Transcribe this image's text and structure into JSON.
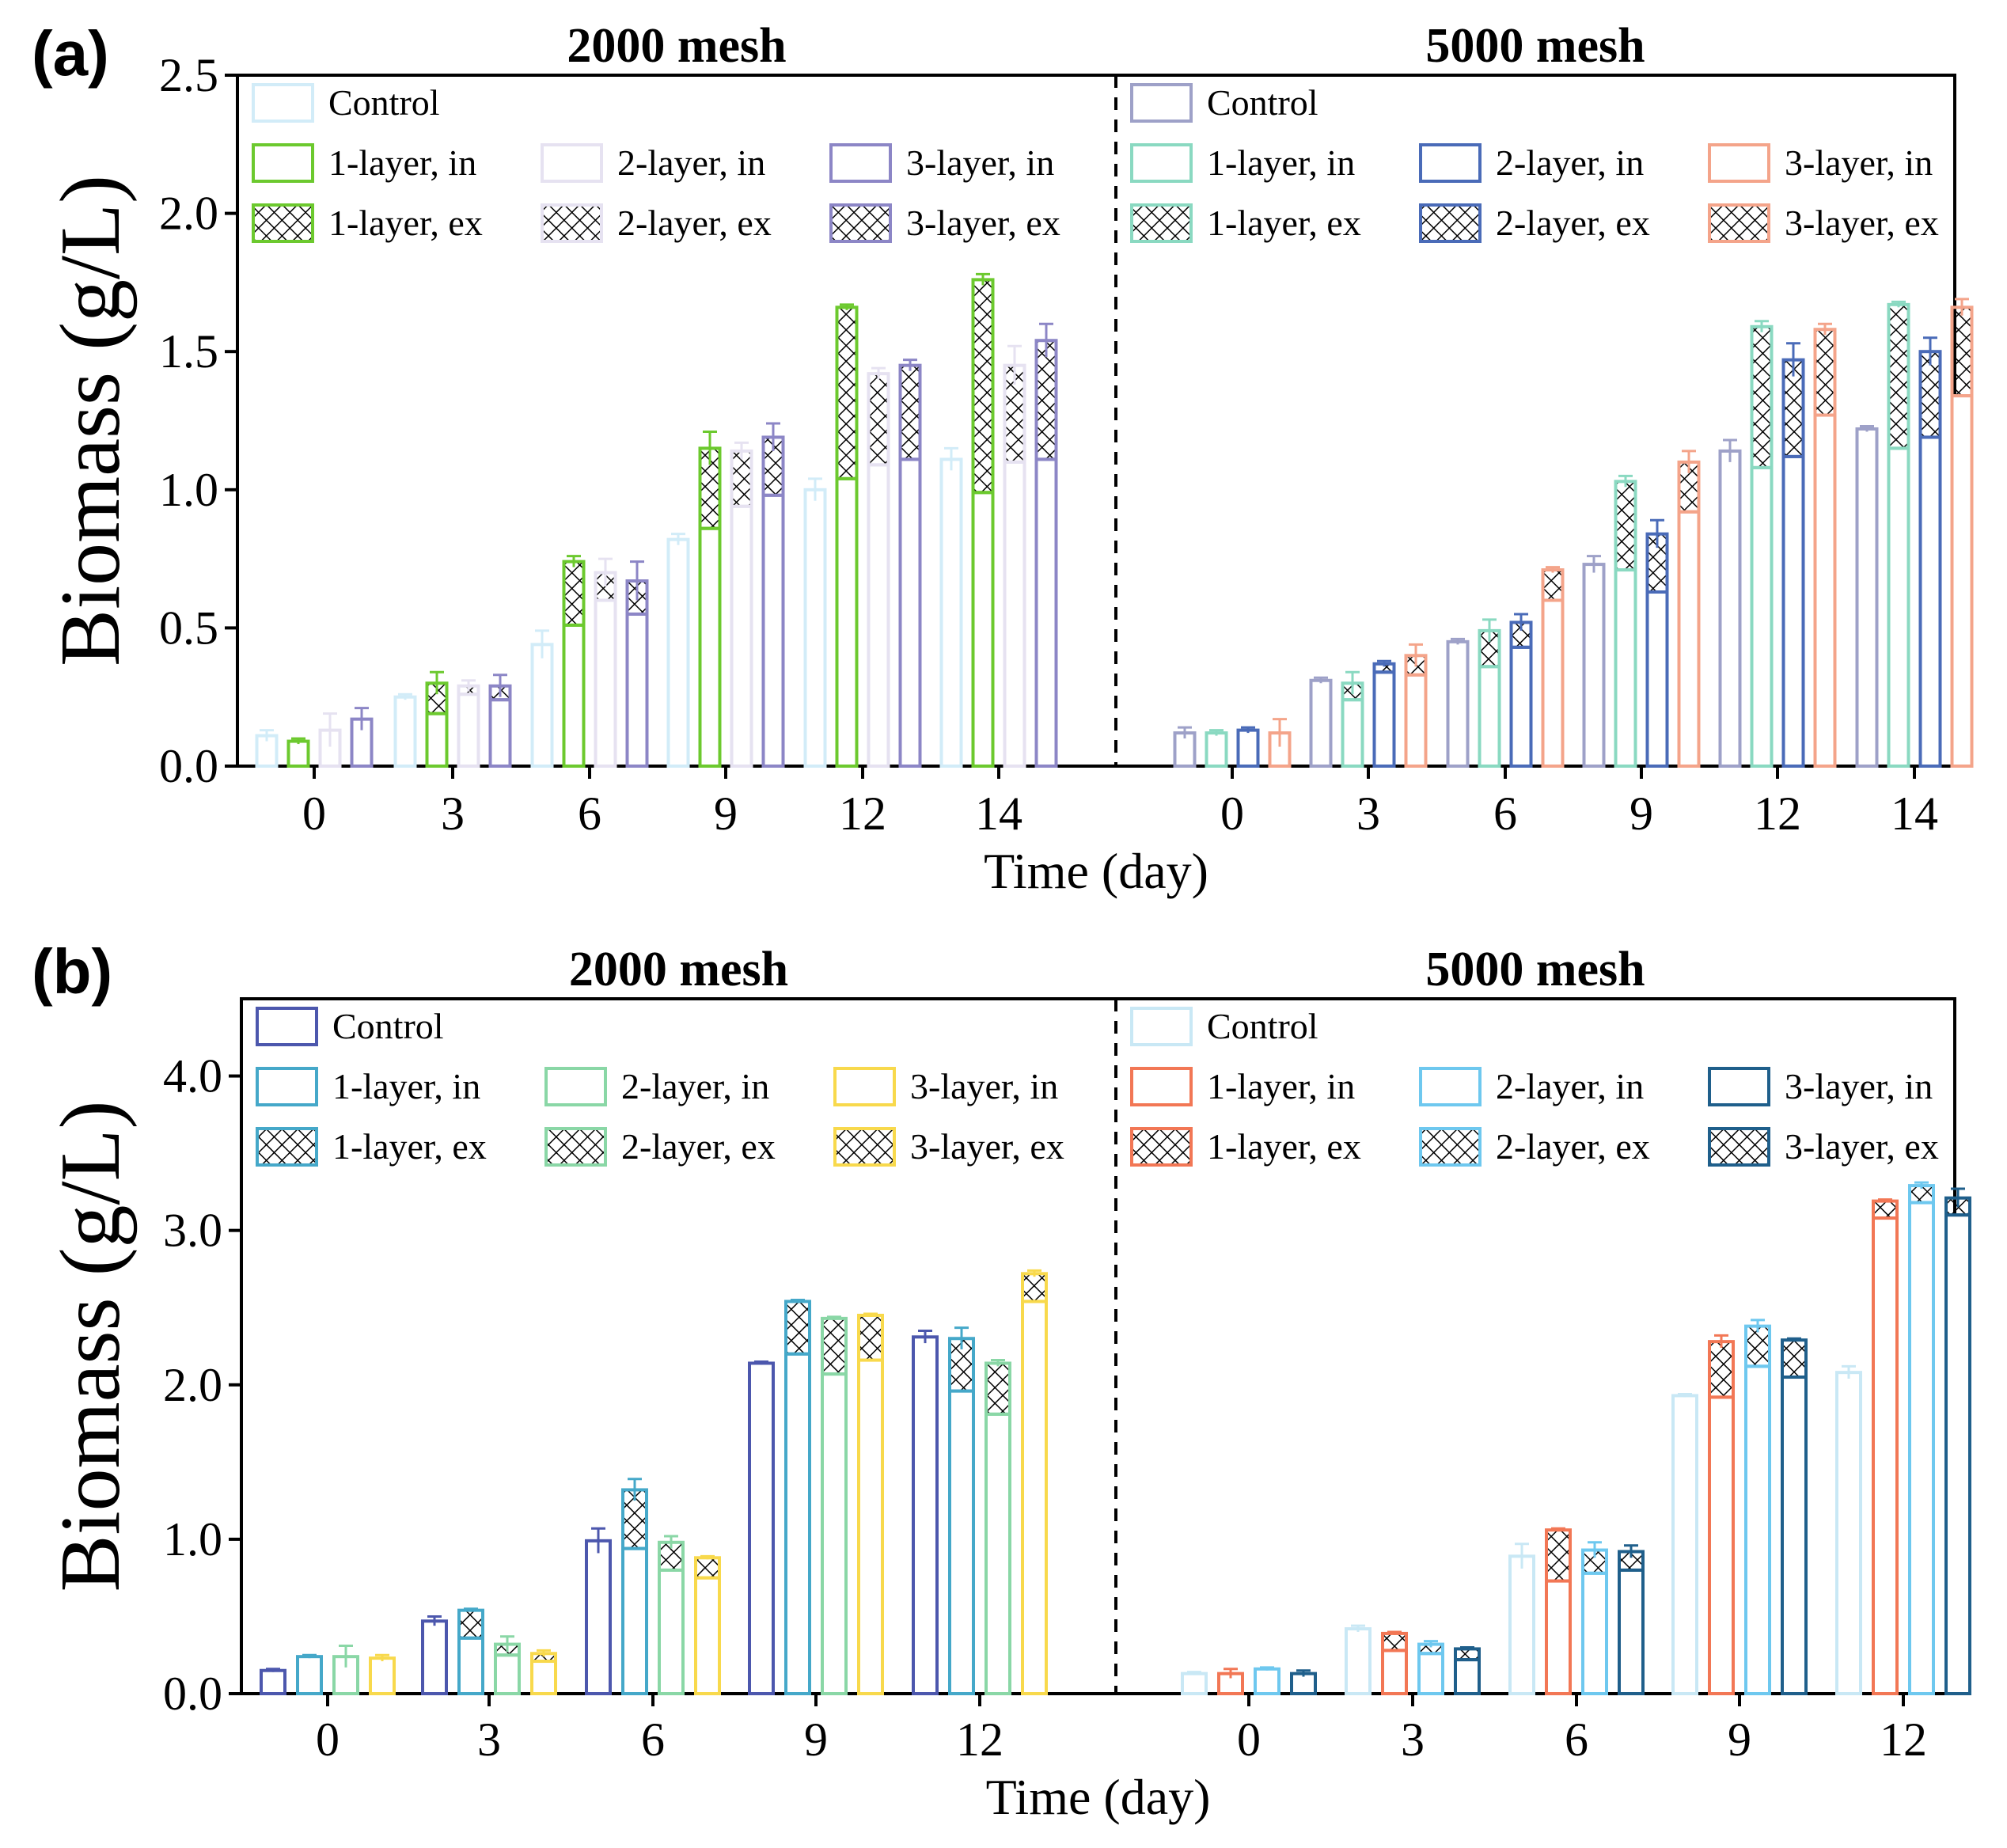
{
  "figure": {
    "xlabel": "Time (day)",
    "ylabel": "Biomass (g/L)"
  },
  "chart_data": [
    {
      "type": "bar",
      "panel_label": "(a)",
      "xlabel": "Time (day)",
      "ylabel": "Biomass (g/L)",
      "ylim": [
        0,
        2.5
      ],
      "yticks": [
        "0.0",
        "0.5",
        "1.0",
        "1.5",
        "2.0",
        "2.5"
      ],
      "groups": [
        {
          "title": "2000 mesh",
          "categories": [
            "0",
            "3",
            "6",
            "9",
            "12",
            "14"
          ],
          "legend_position": "top-left",
          "series": [
            {
              "name": "Control",
              "color": "#d2ecf8",
              "in": [
                0.11,
                0.25,
                0.44,
                0.82,
                1.0,
                1.11
              ],
              "err": [
                0.02,
                0.01,
                0.05,
                0.02,
                0.04,
                0.04
              ]
            },
            {
              "name": "1-layer",
              "color": "#6cc92e",
              "in": [
                0.09,
                0.19,
                0.51,
                0.86,
                1.04,
                0.99
              ],
              "ex": [
                null,
                0.3,
                0.74,
                1.15,
                1.66,
                1.76
              ],
              "err": [
                0.01,
                0.04,
                0.02,
                0.06,
                0.01,
                0.02
              ]
            },
            {
              "name": "2-layer",
              "color": "#e6e2f1",
              "in": [
                0.13,
                0.26,
                0.6,
                0.94,
                1.09,
                1.1
              ],
              "ex": [
                null,
                0.29,
                0.7,
                1.14,
                1.42,
                1.45
              ],
              "err": [
                0.06,
                0.02,
                0.05,
                0.03,
                0.02,
                0.07
              ]
            },
            {
              "name": "3-layer",
              "color": "#8c86c6",
              "in": [
                0.17,
                0.24,
                0.55,
                0.98,
                1.11,
                1.11
              ],
              "ex": [
                null,
                0.29,
                0.67,
                1.19,
                1.45,
                1.54
              ],
              "err": [
                0.04,
                0.04,
                0.07,
                0.05,
                0.02,
                0.06
              ]
            }
          ]
        },
        {
          "title": "5000 mesh",
          "categories": [
            "0",
            "3",
            "6",
            "9",
            "12",
            "14"
          ],
          "legend_position": "top-left",
          "series": [
            {
              "name": "Control",
              "color": "#9ea1c8",
              "in": [
                0.12,
                0.31,
                0.45,
                0.73,
                1.14,
                1.22
              ],
              "err": [
                0.02,
                0.01,
                0.01,
                0.03,
                0.04,
                0.01
              ]
            },
            {
              "name": "1-layer",
              "color": "#8ad9c1",
              "in": [
                0.12,
                0.24,
                0.36,
                0.71,
                1.08,
                1.15
              ],
              "ex": [
                null,
                0.3,
                0.49,
                1.03,
                1.59,
                1.67
              ],
              "err": [
                0.01,
                0.04,
                0.04,
                0.02,
                0.02,
                0.01
              ]
            },
            {
              "name": "2-layer",
              "color": "#4a6bb8",
              "in": [
                0.13,
                0.34,
                0.43,
                0.63,
                1.12,
                1.19
              ],
              "ex": [
                null,
                0.37,
                0.52,
                0.84,
                1.47,
                1.5
              ],
              "err": [
                0.01,
                0.01,
                0.03,
                0.05,
                0.06,
                0.05
              ]
            },
            {
              "name": "3-layer",
              "color": "#f4a48a",
              "in": [
                0.12,
                0.33,
                0.6,
                0.92,
                1.27,
                1.34
              ],
              "ex": [
                null,
                0.4,
                0.71,
                1.1,
                1.58,
                1.66
              ],
              "err": [
                0.05,
                0.04,
                0.01,
                0.04,
                0.02,
                0.03
              ]
            }
          ]
        }
      ],
      "legend": {
        "2000 mesh": [
          "Control",
          "1-layer, in",
          "2-layer, in",
          "3-layer, in",
          "1-layer, ex",
          "2-layer, ex",
          "3-layer, ex"
        ],
        "5000 mesh": [
          "Control",
          "1-layer, in",
          "2-layer, in",
          "3-layer, in",
          "1-layer, ex",
          "2-layer, ex",
          "3-layer, ex"
        ]
      }
    },
    {
      "type": "bar",
      "panel_label": "(b)",
      "xlabel": "Time (day)",
      "ylabel": "Biomass (g/L)",
      "ylim": [
        0,
        4.5
      ],
      "yticks": [
        "0.0",
        "1.0",
        "2.0",
        "3.0",
        "4.0"
      ],
      "groups": [
        {
          "title": "2000 mesh",
          "categories": [
            "0",
            "3",
            "6",
            "9",
            "12"
          ],
          "legend_position": "top-left",
          "series": [
            {
              "name": "Control",
              "color": "#4c57ad",
              "in": [
                0.15,
                0.47,
                0.99,
                2.14,
                2.31
              ],
              "err": [
                0.01,
                0.03,
                0.08,
                0.01,
                0.04
              ]
            },
            {
              "name": "1-layer",
              "color": "#45a8c9",
              "in": [
                0.24,
                0.36,
                0.94,
                2.2,
                1.96
              ],
              "ex": [
                null,
                0.54,
                1.32,
                2.54,
                2.3
              ],
              "err": [
                0.01,
                0.01,
                0.07,
                0.01,
                0.07
              ]
            },
            {
              "name": "2-layer",
              "color": "#8ad7a6",
              "in": [
                0.24,
                0.25,
                0.8,
                2.07,
                1.81
              ],
              "ex": [
                null,
                0.32,
                0.98,
                2.43,
                2.14
              ],
              "err": [
                0.07,
                0.05,
                0.04,
                0.01,
                0.02
              ]
            },
            {
              "name": "3-layer",
              "color": "#f8d94c",
              "in": [
                0.23,
                0.21,
                0.75,
                2.16,
                2.54
              ],
              "ex": [
                null,
                0.26,
                0.88,
                2.45,
                2.72
              ],
              "err": [
                0.02,
                0.02,
                0.01,
                0.01,
                0.02
              ]
            }
          ]
        },
        {
          "title": "5000 mesh",
          "categories": [
            "0",
            "3",
            "6",
            "9",
            "12"
          ],
          "legend_position": "top-left",
          "series": [
            {
              "name": "Control",
              "color": "#c9e8f5",
              "in": [
                0.13,
                0.42,
                0.89,
                1.93,
                2.08
              ],
              "err": [
                0.01,
                0.02,
                0.08,
                0.01,
                0.04
              ]
            },
            {
              "name": "1-layer",
              "color": "#f27755",
              "in": [
                0.13,
                0.28,
                0.73,
                1.92,
                3.08
              ],
              "ex": [
                null,
                0.39,
                1.06,
                2.28,
                3.19
              ],
              "err": [
                0.03,
                0.01,
                0.01,
                0.04,
                0.01
              ]
            },
            {
              "name": "2-layer",
              "color": "#6ec8ef",
              "in": [
                0.16,
                0.26,
                0.78,
                2.12,
                3.18
              ],
              "ex": [
                null,
                0.32,
                0.93,
                2.38,
                3.29
              ],
              "err": [
                0.01,
                0.02,
                0.05,
                0.04,
                0.02
              ]
            },
            {
              "name": "3-layer",
              "color": "#1f5f8b",
              "in": [
                0.13,
                0.22,
                0.8,
                2.05,
                3.1
              ],
              "ex": [
                null,
                0.29,
                0.92,
                2.29,
                3.21
              ],
              "err": [
                0.02,
                0.01,
                0.04,
                0.01,
                0.06
              ]
            }
          ]
        }
      ],
      "legend": {
        "2000 mesh": [
          "Control",
          "1-layer, in",
          "2-layer, in",
          "3-layer, in",
          "1-layer, ex",
          "2-layer, ex",
          "3-layer, ex"
        ],
        "5000 mesh": [
          "Control",
          "1-layer, in",
          "2-layer, in",
          "3-layer, in",
          "1-layer, ex",
          "2-layer, ex",
          "3-layer, ex"
        ]
      }
    }
  ]
}
